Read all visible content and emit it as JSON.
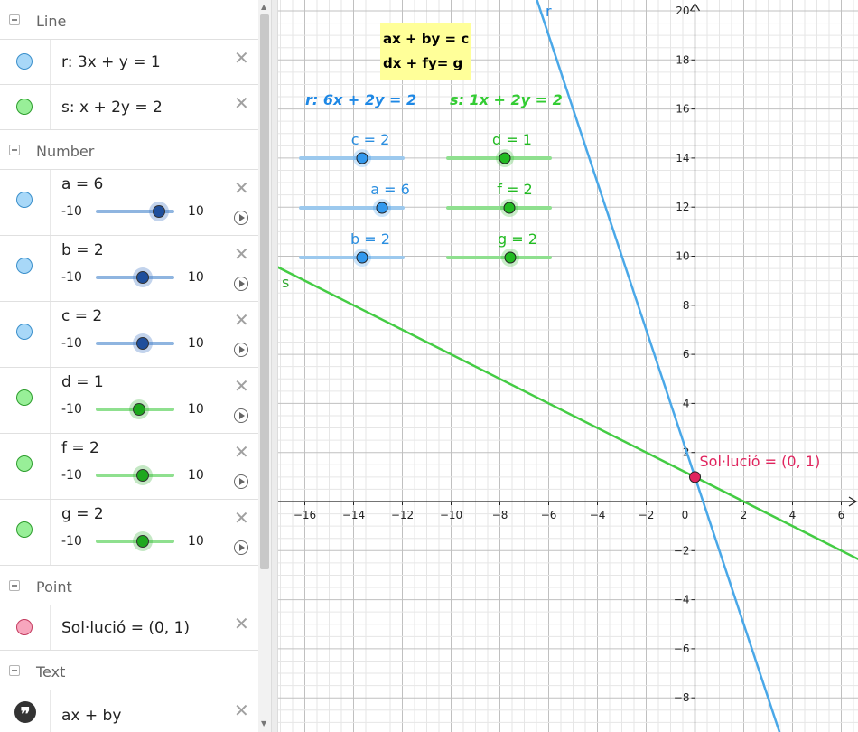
{
  "algebra": {
    "groups": {
      "line": "Line",
      "number": "Number",
      "point": "Point",
      "text": "Text"
    },
    "lines": [
      {
        "definition": "r: 3x + y = 1",
        "color": "blue"
      },
      {
        "definition": "s: x + 2y = 2",
        "color": "green"
      }
    ],
    "sliders": [
      {
        "label": "a = 6",
        "min": "-10",
        "max": "10",
        "value": 6,
        "color": "blue"
      },
      {
        "label": "b = 2",
        "min": "-10",
        "max": "10",
        "value": 2,
        "color": "blue"
      },
      {
        "label": "c = 2",
        "min": "-10",
        "max": "10",
        "value": 2,
        "color": "blue"
      },
      {
        "label": "d = 1",
        "min": "-10",
        "max": "10",
        "value": 1,
        "color": "green"
      },
      {
        "label": "f = 2",
        "min": "-10",
        "max": "10",
        "value": 2,
        "color": "green"
      },
      {
        "label": "g = 2",
        "min": "-10",
        "max": "10",
        "value": 2,
        "color": "green"
      }
    ],
    "point": {
      "definition": "Sol·lució = (0, 1)",
      "color": "pink"
    },
    "text": {
      "definition": "ax + by",
      "icon": "quote-icon"
    },
    "close_glyph": "✕"
  },
  "graphics": {
    "system_box": {
      "line1": "ax + by = c",
      "line2": "dx + fy= g",
      "background": "#ffff99"
    },
    "eq_r": "r: 6x + 2y = 2",
    "eq_s": "s: 1x + 2y = 2",
    "sliders": [
      {
        "label": "c = 2",
        "value": 2,
        "color": "blue"
      },
      {
        "label": "a = 6",
        "value": 6,
        "color": "blue"
      },
      {
        "label": "b = 2",
        "value": 2,
        "color": "blue"
      },
      {
        "label": "d = 1",
        "value": 1,
        "color": "green"
      },
      {
        "label": "f = 2",
        "value": 2,
        "color": "green"
      },
      {
        "label": "g = 2",
        "value": 2,
        "color": "green"
      }
    ],
    "line_r_label": "r",
    "line_s_label": "s",
    "solution_label": "Sol·lució = (0, 1)",
    "solution": {
      "x": 0,
      "y": 1
    },
    "x_ticks": [
      "−16",
      "−14",
      "−12",
      "−10",
      "−8",
      "−6",
      "−4",
      "−2",
      "0",
      "2",
      "4",
      "6"
    ],
    "y_ticks": [
      "20",
      "18",
      "16",
      "14",
      "12",
      "10",
      "8",
      "6",
      "4",
      "2",
      "−2",
      "−4",
      "−6",
      "−8"
    ],
    "colors": {
      "blue": "#1e88e5",
      "line_blue": "#4aa8e8",
      "green": "#33cc33",
      "line_green": "#44cc44",
      "point": "#e0245e"
    }
  }
}
